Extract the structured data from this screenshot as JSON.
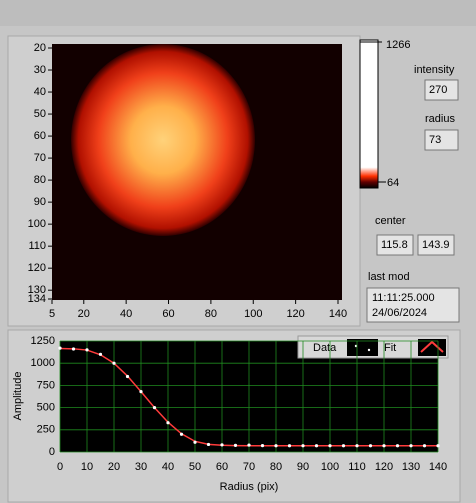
{
  "image_plot": {
    "xlim": [
      5,
      140
    ],
    "ylim": [
      134,
      20
    ],
    "xticks": [
      5,
      20,
      40,
      60,
      80,
      100,
      120,
      140
    ],
    "yticks": [
      20,
      30,
      40,
      50,
      60,
      70,
      80,
      90,
      100,
      110,
      120,
      130,
      134
    ]
  },
  "colorbar": {
    "max": 1266,
    "min": 64
  },
  "indicators": {
    "intensity": {
      "label": "intensity",
      "value": "270"
    },
    "radius": {
      "label": "radius",
      "value": "73"
    },
    "center": {
      "label": "center",
      "x": "115.8",
      "y": "143.9"
    },
    "last_mod": {
      "label": "last mod",
      "time": "11:11:25.000",
      "date": "24/06/2024"
    }
  },
  "chart_data": {
    "type": "line",
    "x_label": "Radius (pix)",
    "y_label": "Amplitude",
    "x": [
      0,
      5,
      10,
      15,
      20,
      25,
      30,
      35,
      40,
      45,
      50,
      55,
      60,
      65,
      70,
      75,
      80,
      85,
      90,
      95,
      100,
      105,
      110,
      115,
      120,
      125,
      130,
      135,
      140
    ],
    "series": [
      {
        "name": "Data",
        "color": "#ffffff",
        "values": [
          1170,
          1160,
          1150,
          1100,
          1000,
          850,
          680,
          500,
          330,
          200,
          110,
          85,
          80,
          75,
          78,
          72,
          70,
          70,
          70,
          70,
          70,
          70,
          70,
          70,
          70,
          70,
          70,
          70,
          70
        ]
      },
      {
        "name": "Fit",
        "color": "#ff3b3b",
        "values": [
          1165,
          1162,
          1148,
          1095,
          1000,
          855,
          680,
          500,
          335,
          205,
          120,
          86,
          76,
          72,
          71,
          70,
          70,
          70,
          70,
          70,
          70,
          70,
          70,
          70,
          70,
          70,
          70,
          70,
          70
        ]
      }
    ],
    "xlim": [
      0,
      140
    ],
    "ylim": [
      0,
      1250
    ],
    "xticks": [
      0,
      10,
      20,
      30,
      40,
      50,
      60,
      70,
      80,
      90,
      100,
      110,
      120,
      130,
      140
    ],
    "yticks": [
      0,
      250,
      500,
      750,
      1000,
      1250
    ],
    "grid": true
  }
}
